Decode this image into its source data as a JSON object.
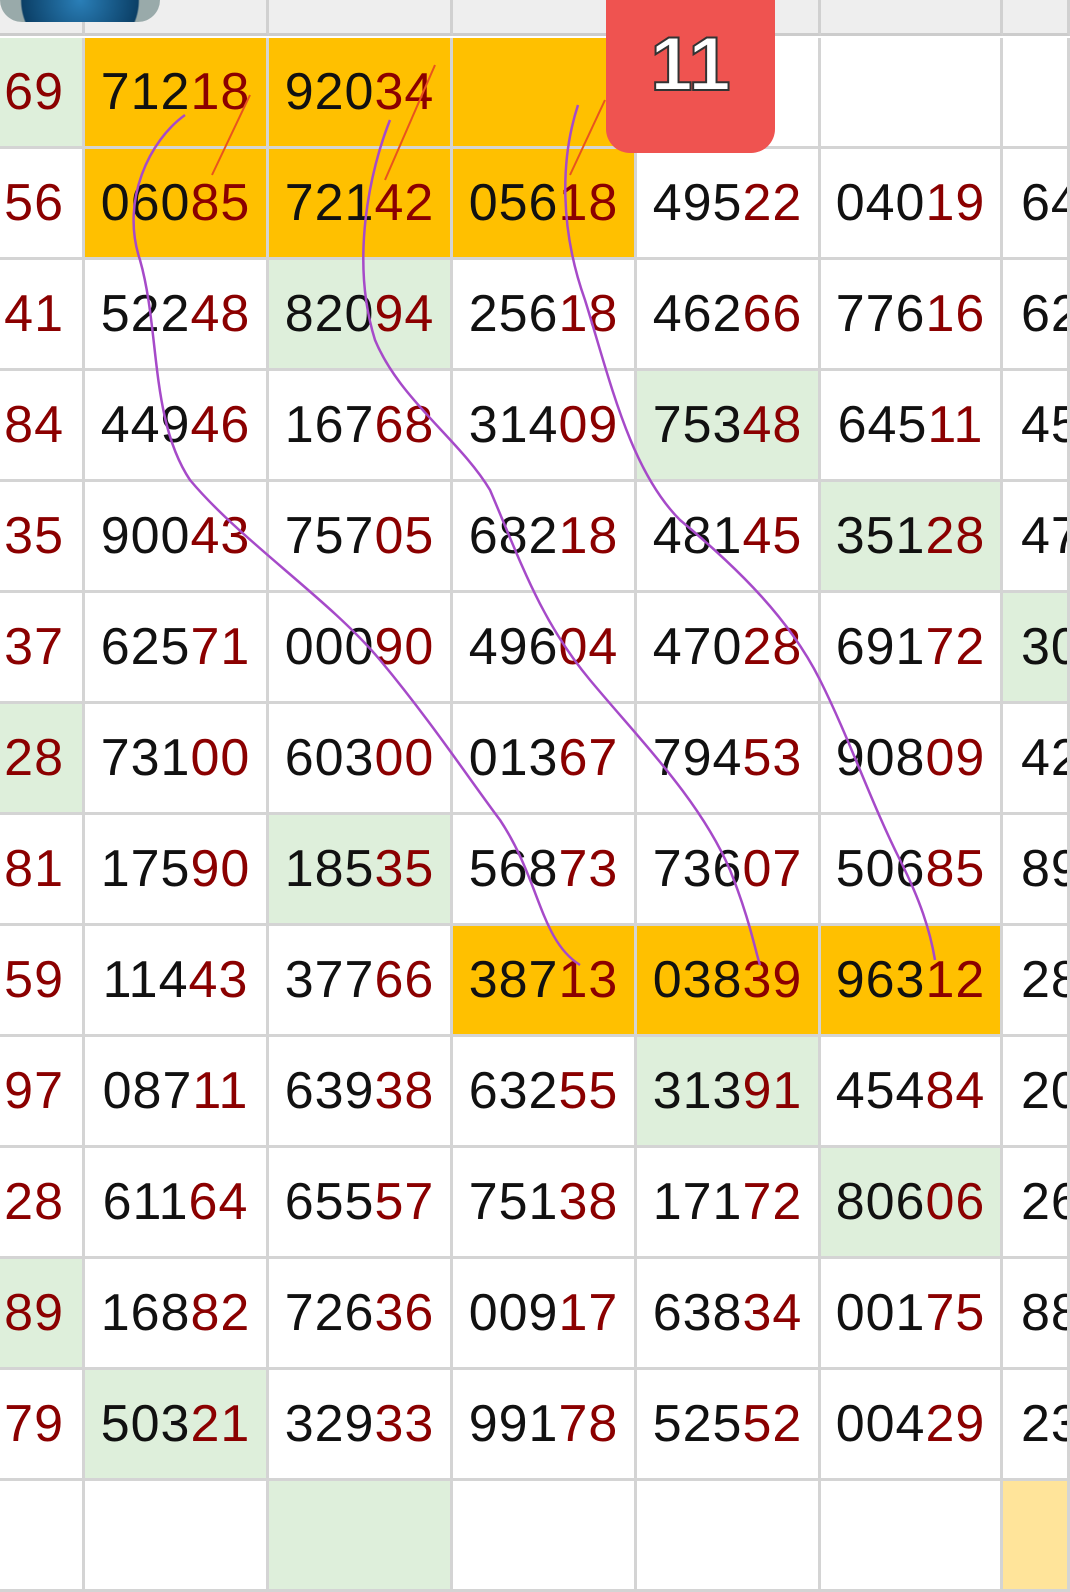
{
  "badge": {
    "label": "11",
    "color": "#ef5350"
  },
  "colors": {
    "highlight": "#ffc000",
    "green": "#deefdb",
    "red_digits": "#8b0000",
    "pen": "#a64ac9"
  },
  "rows": [
    {
      "left": "69",
      "cells": [
        "71218",
        "92034",
        "",
        "",
        "",
        ""
      ],
      "right": ""
    },
    {
      "left": "56",
      "cells": [
        "06085",
        "72142",
        "05618",
        "49522",
        "04019"
      ],
      "right": "64"
    },
    {
      "left": "41",
      "cells": [
        "52248",
        "82094",
        "25618",
        "46266",
        "77616"
      ],
      "right": "62"
    },
    {
      "left": "84",
      "cells": [
        "44946",
        "16768",
        "31409",
        "75348",
        "64511"
      ],
      "right": "45"
    },
    {
      "left": "35",
      "cells": [
        "90043",
        "75705",
        "68218",
        "48145",
        "35128"
      ],
      "right": "47"
    },
    {
      "left": "37",
      "cells": [
        "62571",
        "00090",
        "49604",
        "47028",
        "69172"
      ],
      "right": "30"
    },
    {
      "left": "28",
      "cells": [
        "73100",
        "60300",
        "01367",
        "79453",
        "90809"
      ],
      "right": "42"
    },
    {
      "left": "81",
      "cells": [
        "17590",
        "18535",
        "56873",
        "73607",
        "50685"
      ],
      "right": "89"
    },
    {
      "left": "59",
      "cells": [
        "11443",
        "37766",
        "38713",
        "03839",
        "96312"
      ],
      "right": "28"
    },
    {
      "left": "97",
      "cells": [
        "08711",
        "63938",
        "63255",
        "31391",
        "45484"
      ],
      "right": "20"
    },
    {
      "left": "28",
      "cells": [
        "61164",
        "65557",
        "75138",
        "17172",
        "80606"
      ],
      "right": "26"
    },
    {
      "left": "89",
      "cells": [
        "16882",
        "72636",
        "00917",
        "63834",
        "00175"
      ],
      "right": "88"
    },
    {
      "left": "79",
      "cells": [
        "50321",
        "32933",
        "99178",
        "52552",
        "00429"
      ],
      "right": "23"
    }
  ]
}
